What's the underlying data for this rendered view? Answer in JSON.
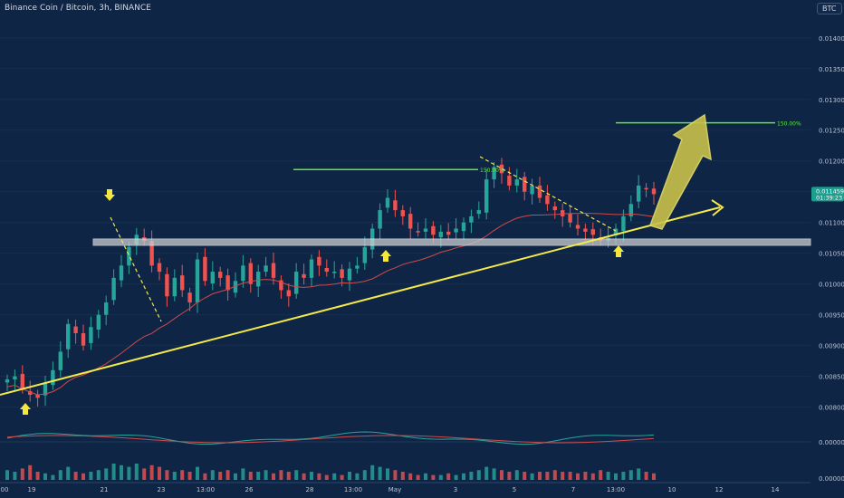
{
  "header": {
    "title": "Binance Coin / Bitcoin, 3h, BINANCE",
    "currency_label": "BTC"
  },
  "price_tag": {
    "price": "0.011459",
    "countdown": "01:39:23"
  },
  "colors": {
    "background": "#0f2545",
    "up": "#26a69a",
    "down": "#ef5350",
    "trendline": "#f3e94b",
    "target": "#5ee83a",
    "ma": "#d04a4a",
    "arrow_fill": "#c9c24a",
    "support": "#c8ccd0"
  },
  "chart_data": {
    "type": "candlestick",
    "symbol": "BNBBTC",
    "timeframe": "3h",
    "y_ticks": [
      "0.014000",
      "0.013500",
      "0.013000",
      "0.012500",
      "0.012000",
      "0.011500",
      "0.011000",
      "0.010500",
      "0.010000",
      "0.009500",
      "0.009000",
      "0.008500",
      "0.008000"
    ],
    "ylim": [
      0.0077,
      0.01435
    ],
    "x_ticks": [
      "00",
      "19",
      "21",
      "23",
      "13:00",
      "26",
      "28",
      "13:00",
      "May",
      "3",
      "5",
      "7",
      "13:00",
      "10",
      "12",
      "14"
    ],
    "price_close": [
      0.00845,
      0.0085,
      0.0083,
      0.0082,
      0.00815,
      0.0084,
      0.0086,
      0.0089,
      0.00935,
      0.0092,
      0.009,
      0.0093,
      0.0095,
      0.0097,
      0.0101,
      0.0103,
      0.0106,
      0.0108,
      0.0107,
      0.0103,
      0.0102,
      0.0098,
      0.0101,
      0.0099,
      0.0097,
      0.0104,
      0.01005,
      0.0102,
      0.0101,
      0.0099,
      0.01005,
      0.0103,
      0.01,
      0.0102,
      0.0103,
      0.0101,
      0.0099,
      0.0098,
      0.0102,
      0.0101,
      0.0104,
      0.0103,
      0.0102,
      0.0102,
      0.0101,
      0.01025,
      0.0103,
      0.0106,
      0.0109,
      0.0112,
      0.0114,
      0.0112,
      0.0111,
      0.0109,
      0.01085,
      0.0109,
      0.0108,
      0.01085,
      0.0108,
      0.0109,
      0.011,
      0.0111,
      0.0112,
      0.0117,
      0.0119,
      0.0118,
      0.0116,
      0.0117,
      0.0115,
      0.0116,
      0.0114,
      0.0113,
      0.0112,
      0.0111,
      0.011,
      0.0109,
      0.01085,
      0.0108,
      0.0107,
      0.01075,
      0.0109,
      0.0111,
      0.0113,
      0.0116,
      0.01155,
      0.01146
    ],
    "volume": [
      0.6,
      0.5,
      0.7,
      0.9,
      0.5,
      0.4,
      0.3,
      0.6,
      0.8,
      0.5,
      0.4,
      0.5,
      0.6,
      0.7,
      1,
      0.9,
      0.8,
      1,
      0.7,
      0.9,
      0.8,
      0.6,
      0.5,
      0.6,
      0.5,
      0.8,
      0.4,
      0.6,
      0.5,
      0.6,
      0.4,
      0.7,
      0.5,
      0.5,
      0.6,
      0.4,
      0.6,
      0.5,
      0.6,
      0.4,
      0.5,
      0.4,
      0.3,
      0.4,
      0.3,
      0.5,
      0.4,
      0.6,
      0.9,
      0.8,
      0.7,
      0.6,
      0.5,
      0.4,
      0.3,
      0.4,
      0.3,
      0.3,
      0.4,
      0.3,
      0.4,
      0.5,
      0.6,
      0.8,
      0.7,
      0.6,
      0.5,
      0.6,
      0.5,
      0.4,
      0.5,
      0.5,
      0.6,
      0.5,
      0.5,
      0.4,
      0.5,
      0.4,
      0.6,
      0.5,
      0.4,
      0.5,
      0.6,
      0.7,
      0.5,
      0.4
    ],
    "support_level": 0.01068,
    "target_level": 0.01262,
    "prior_high_level": 0.01186,
    "target_label": "150.00%",
    "prior_label": "150.00%",
    "annotations": [
      "support zone",
      "rising trendline",
      "target arrow",
      "fib extension 150.00%"
    ]
  }
}
